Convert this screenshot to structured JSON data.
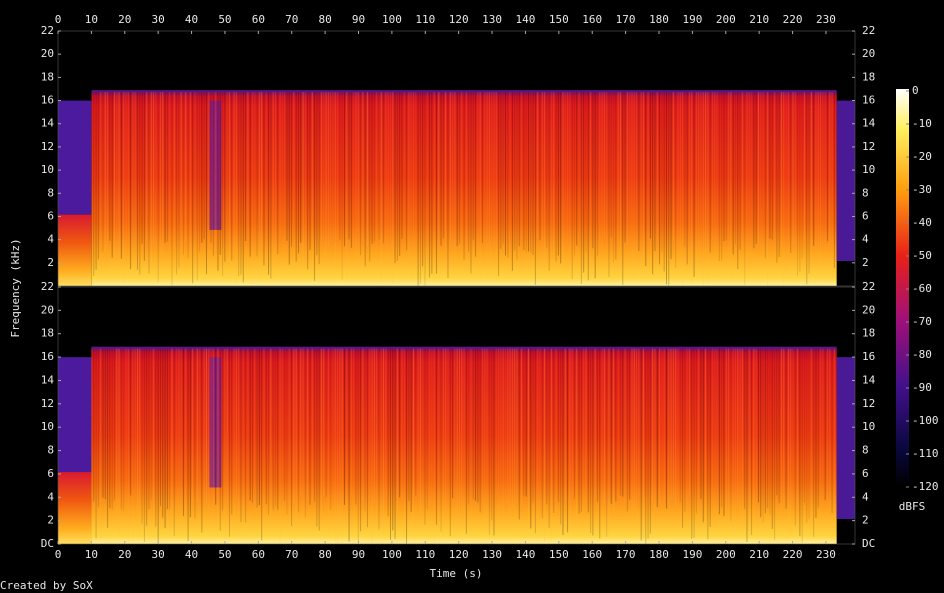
{
  "chart_data": [
    {
      "type": "spectrogram",
      "ylabel": "Frequency (kHz)",
      "xlim": [
        0,
        238.7
      ],
      "xticks": [
        0,
        10,
        20,
        30,
        40,
        50,
        60,
        70,
        80,
        90,
        100,
        110,
        120,
        130,
        140,
        150,
        160,
        170,
        180,
        190,
        200,
        210,
        220,
        230
      ],
      "ylim": [
        0,
        22
      ],
      "yticks": [
        2,
        4,
        6,
        8,
        10,
        12,
        14,
        16,
        18,
        20,
        22
      ]
    },
    {
      "type": "spectrogram",
      "xlabel": "Time (s)",
      "xlim": [
        0,
        238.7
      ],
      "xticks": [
        0,
        10,
        20,
        30,
        40,
        50,
        60,
        70,
        80,
        90,
        100,
        110,
        120,
        130,
        140,
        150,
        160,
        170,
        180,
        190,
        200,
        210,
        220,
        230
      ],
      "ylim": [
        0,
        22
      ],
      "yticks": [
        {
          "value": 0,
          "label": "DC"
        },
        2,
        4,
        6,
        8,
        10,
        12,
        14,
        16,
        18,
        20,
        22
      ],
      "colorbar": {
        "label": "dBFS",
        "lim": [
          -120,
          0
        ],
        "ticks": [
          0,
          -10,
          -20,
          -30,
          -40,
          -50,
          -60,
          -70,
          -80,
          -90,
          -100,
          -110,
          -120
        ]
      }
    }
  ],
  "footer": "Created by SoX"
}
